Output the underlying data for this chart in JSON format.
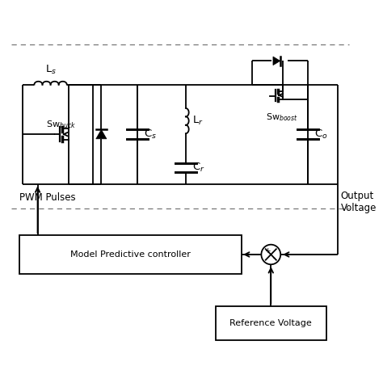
{
  "bg_color": "#ffffff",
  "line_color": "#000000",
  "fig_size": [
    4.74,
    4.74
  ],
  "dpi": 100,
  "labels": {
    "Ls": "L$_s$",
    "Lr": "L$_r$",
    "Cs": "C$_s$",
    "Cr": "C$_r$",
    "Co": "C$_o$",
    "Sw_buck": "Sw$_{buck}$",
    "Sw_boost": "Sw$_{boost}$",
    "PWM": "PWM Pulses",
    "Output": "Output\nVoltage",
    "MPC": "Model Predictive controller",
    "RefV": "Reference Voltage"
  }
}
